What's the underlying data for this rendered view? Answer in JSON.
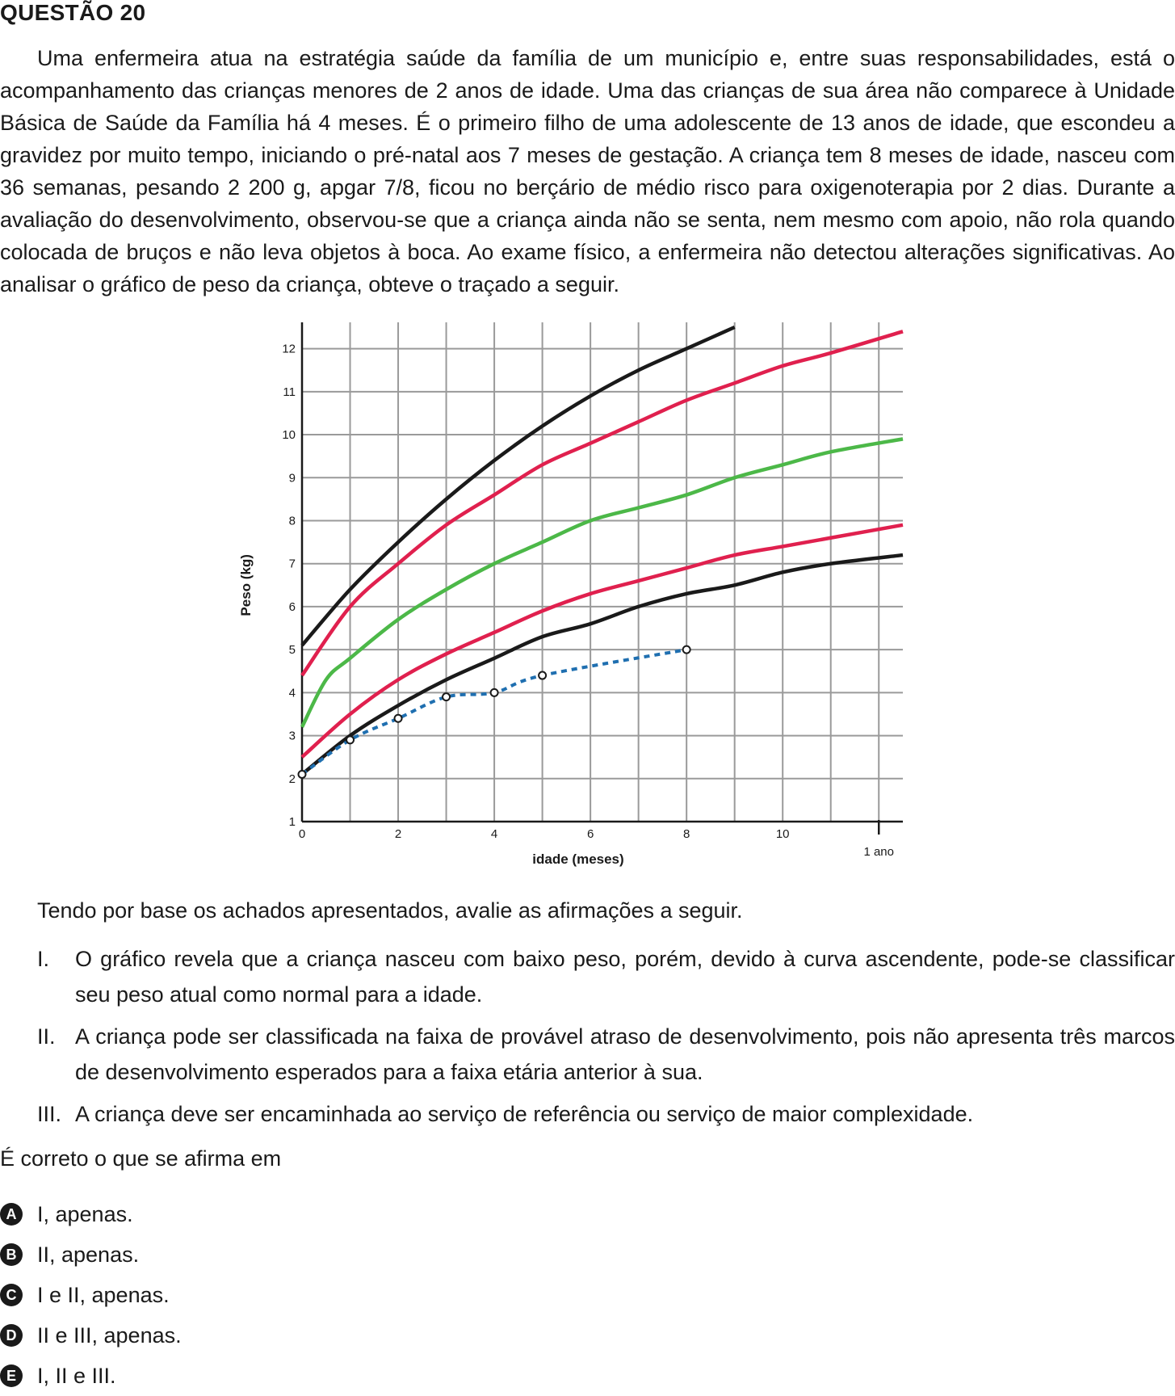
{
  "question": {
    "title": "QUESTÃO 20",
    "stem": "Uma enfermeira atua na estratégia saúde da família de um município e, entre suas responsabilidades, está o acompanhamento das crianças menores de 2 anos de idade. Uma das crianças de sua área não comparece à Unidade Básica de Saúde da Família há 4 meses. É o primeiro filho de uma adolescente de 13 anos de idade, que escondeu a gravidez por muito tempo, iniciando o pré-natal aos 7 meses de gestação. A criança tem 8 meses de idade, nasceu com 36 semanas, pesando 2 200 g, apgar 7/8, ficou no berçário de médio risco para oxigenoterapia por 2 dias. Durante a avaliação do desenvolvimento, observou-se que a criança ainda não se senta, nem mesmo com apoio, não rola quando colocada de bruços e não leva objetos à boca. Ao exame físico, a enfermeira não detectou alterações significativas. Ao analisar o gráfico de peso da criança, obteve o traçado a seguir.",
    "lead": "Tendo por base os achados apresentados, avalie as afirmações a seguir.",
    "statements": [
      {
        "num": "I.",
        "text": "O gráfico revela que a criança nasceu com baixo peso, porém, devido à curva ascendente, pode-se classificar seu peso atual como normal para a idade."
      },
      {
        "num": "II.",
        "text": "A criança pode ser classificada na faixa de provável atraso de desenvolvimento, pois não apresenta três marcos de desenvolvimento esperados para a faixa etária anterior à sua."
      },
      {
        "num": "III.",
        "text": "A criança deve ser encaminhada ao serviço de referência ou serviço de maior complexidade."
      }
    ],
    "ask": "É correto o que se afirma em",
    "options": [
      {
        "letter": "A",
        "text": "I, apenas."
      },
      {
        "letter": "B",
        "text": "II, apenas."
      },
      {
        "letter": "C",
        "text": "I e II, apenas."
      },
      {
        "letter": "D",
        "text": "II e III, apenas."
      },
      {
        "letter": "E",
        "text": "I, II e III."
      }
    ]
  },
  "chart_data": {
    "type": "line",
    "xlabel": "idade (meses)",
    "ylabel": "Peso (kg)",
    "xlim": [
      0,
      12.5
    ],
    "ylim": [
      1,
      12.5
    ],
    "x_tick_labels": [
      "0",
      "2",
      "4",
      "6",
      "8",
      "10"
    ],
    "x_tick_values": [
      0,
      2,
      4,
      6,
      8,
      10
    ],
    "x_extra_tick": {
      "value": 12,
      "label": "1 ano"
    },
    "y_tick_values": [
      1,
      2,
      3,
      4,
      5,
      6,
      7,
      8,
      9,
      10,
      11,
      12
    ],
    "grid": true,
    "colors": {
      "black": "#1a1a1a",
      "red": "#e0204e",
      "green": "#4cb848",
      "blue": "#1f6fb0",
      "grid": "#9a9a9a"
    },
    "series": [
      {
        "color": "black",
        "style": "solid",
        "x": [
          0,
          1,
          2,
          3,
          4,
          5,
          6,
          7,
          8,
          9
        ],
        "y": [
          5.1,
          6.4,
          7.5,
          8.5,
          9.4,
          10.2,
          10.9,
          11.5,
          12.0,
          12.5
        ]
      },
      {
        "color": "red",
        "style": "solid",
        "x": [
          0,
          1,
          2,
          3,
          4,
          5,
          6,
          7,
          8,
          9,
          10,
          11,
          12.5
        ],
        "y": [
          4.4,
          6.0,
          7.0,
          7.9,
          8.6,
          9.3,
          9.8,
          10.3,
          10.8,
          11.2,
          11.6,
          11.9,
          12.4
        ]
      },
      {
        "color": "green",
        "style": "solid",
        "x": [
          0,
          0.5,
          1,
          2,
          3,
          4,
          5,
          6,
          7,
          8,
          9,
          10,
          11,
          12.5
        ],
        "y": [
          3.2,
          4.3,
          4.8,
          5.7,
          6.4,
          7.0,
          7.5,
          8.0,
          8.3,
          8.6,
          9.0,
          9.3,
          9.6,
          9.9
        ]
      },
      {
        "color": "red",
        "style": "solid",
        "x": [
          0,
          1,
          2,
          3,
          4,
          5,
          6,
          7,
          8,
          9,
          10,
          11,
          12.5
        ],
        "y": [
          2.5,
          3.5,
          4.3,
          4.9,
          5.4,
          5.9,
          6.3,
          6.6,
          6.9,
          7.2,
          7.4,
          7.6,
          7.9
        ]
      },
      {
        "color": "black",
        "style": "solid",
        "x": [
          0,
          1,
          2,
          3,
          4,
          5,
          6,
          7,
          8,
          9,
          10,
          11,
          12.5
        ],
        "y": [
          2.1,
          3.0,
          3.7,
          4.3,
          4.8,
          5.3,
          5.6,
          6.0,
          6.3,
          6.5,
          6.8,
          7.0,
          7.2
        ]
      },
      {
        "color": "blue",
        "style": "dotted",
        "markers": true,
        "x": [
          0,
          1,
          2,
          3,
          4,
          5,
          8
        ],
        "y": [
          2.1,
          2.9,
          3.4,
          3.9,
          4.0,
          4.4,
          5.0
        ]
      }
    ]
  }
}
